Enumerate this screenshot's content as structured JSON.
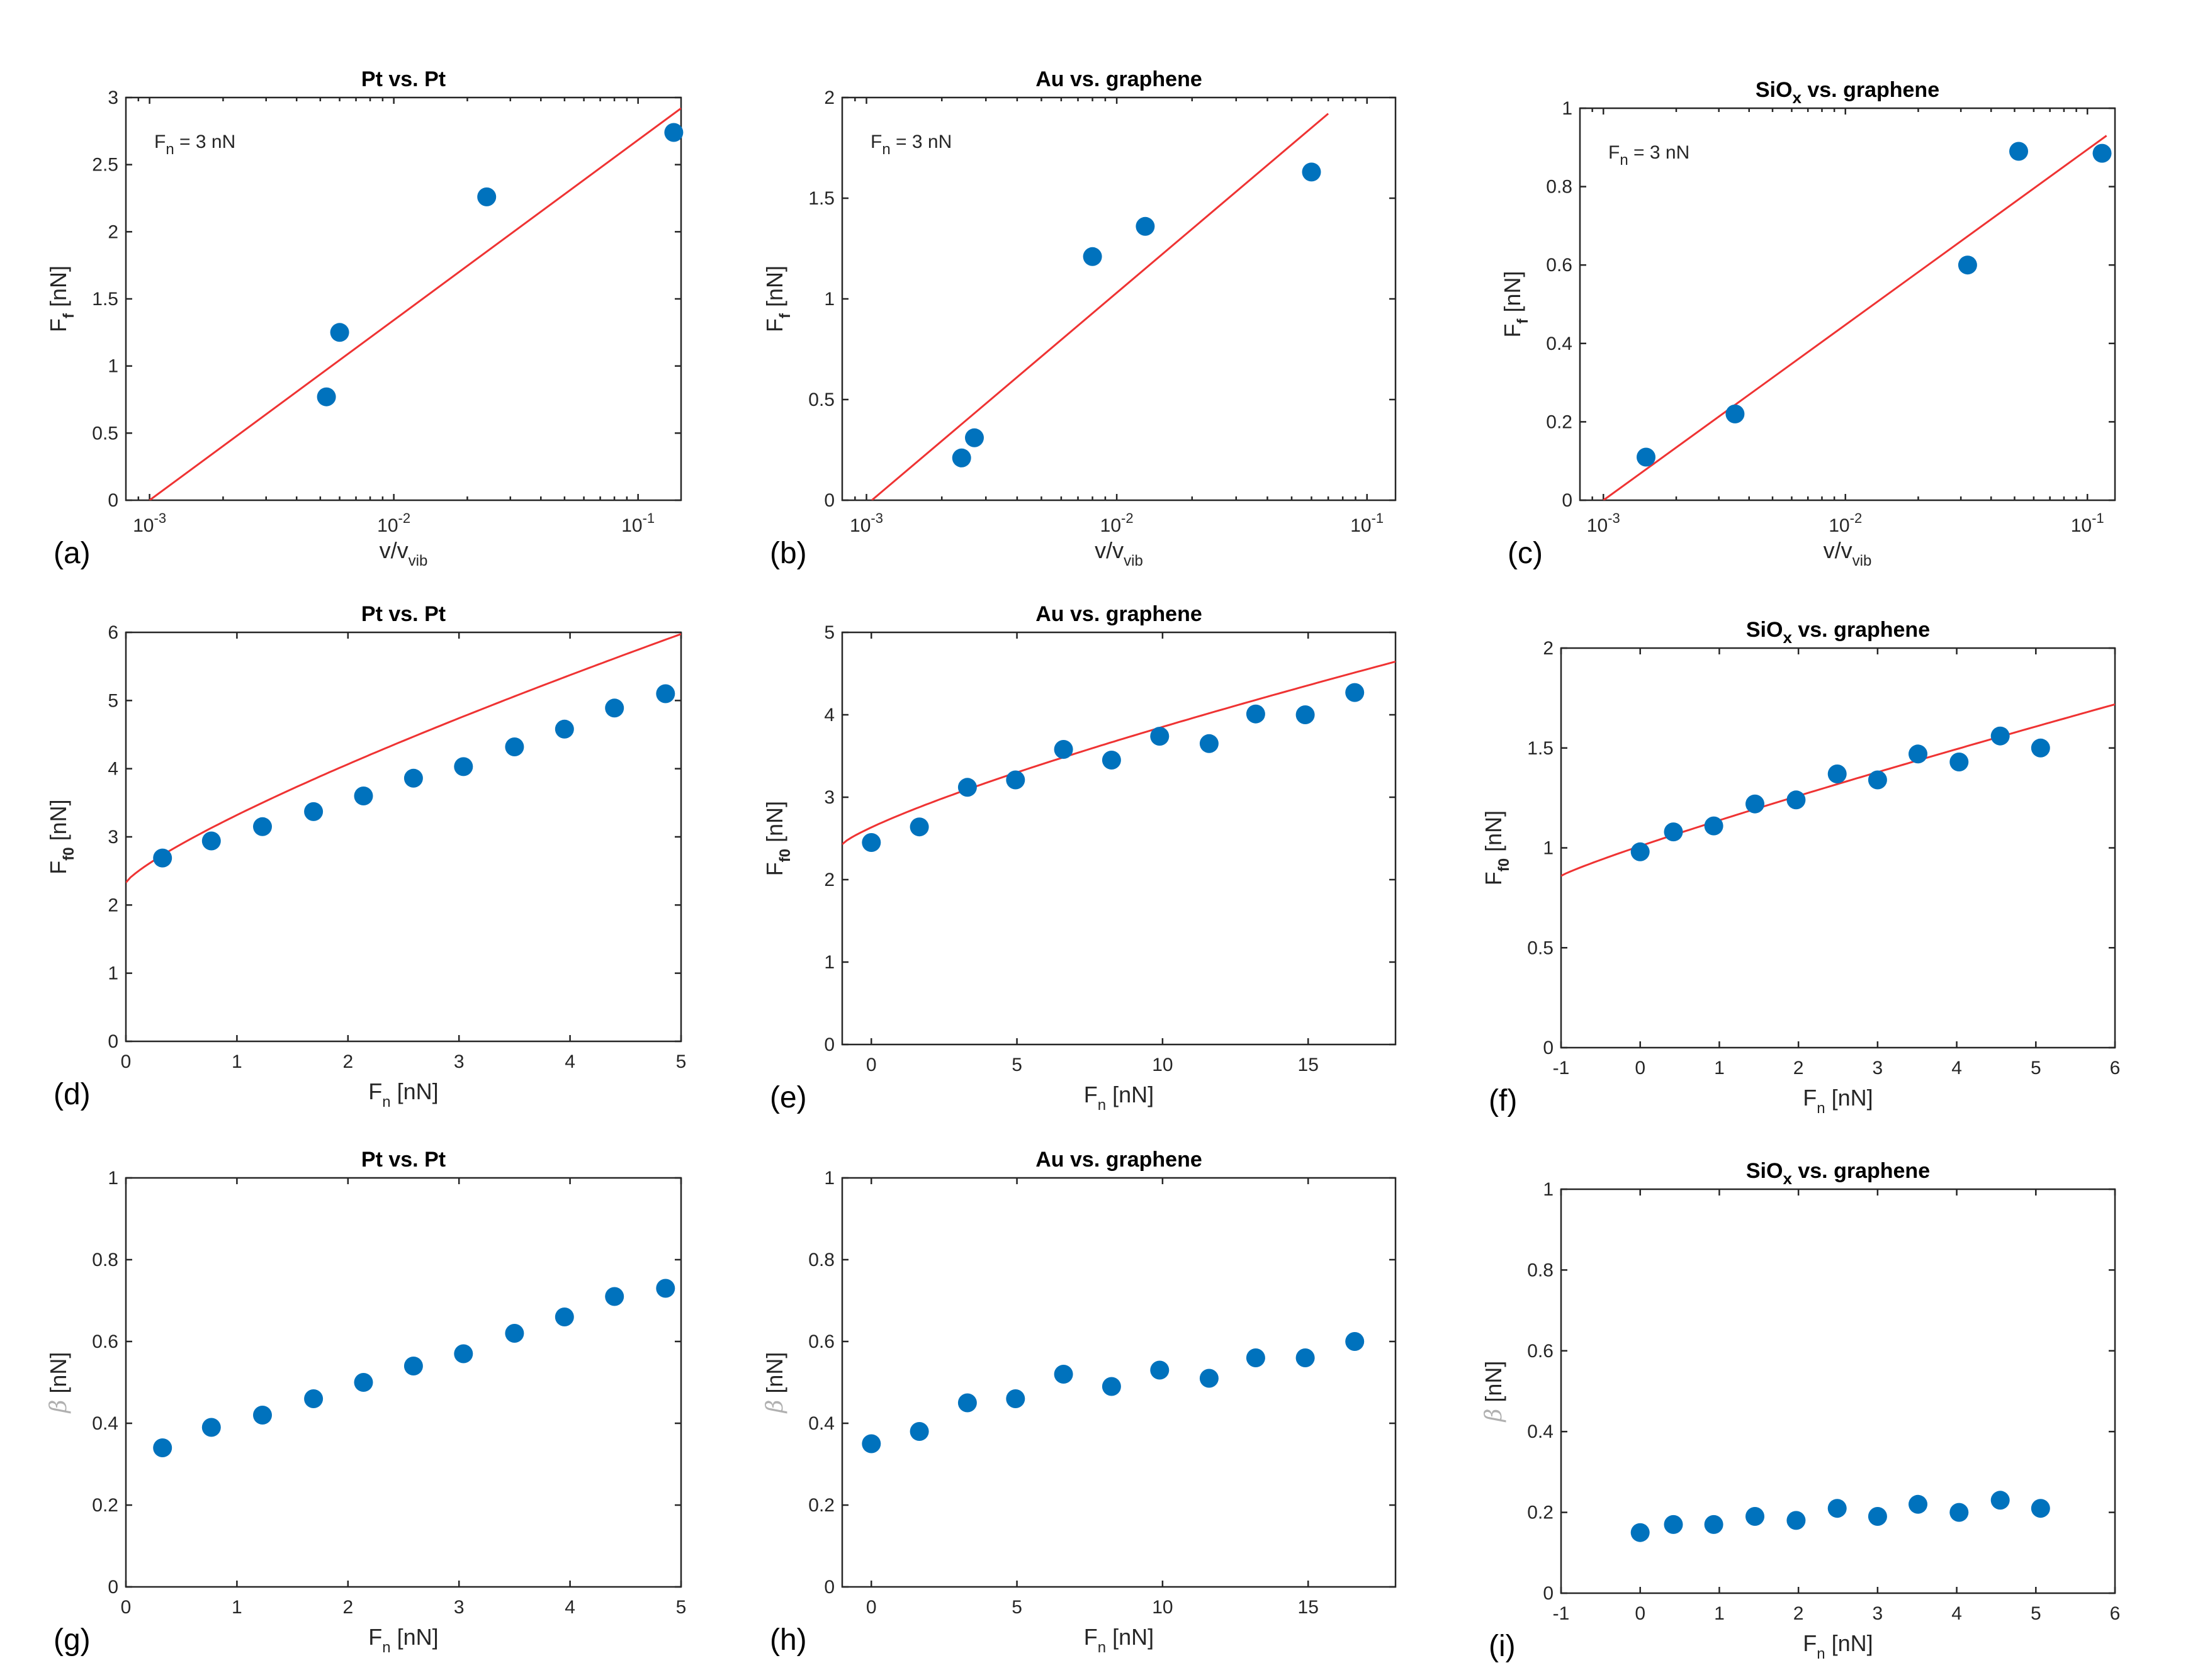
{
  "chart_data": [
    {
      "id": "a",
      "panel_label": "(a)",
      "type": "scatter",
      "title": {
        "main": "Pt vs. Pt",
        "sub": ""
      },
      "xlabel": {
        "main": "v/v",
        "sub": "vib"
      },
      "ylabel": {
        "main": "F",
        "sub": "f",
        "unit": " [nN]"
      },
      "xscale": "log",
      "xlim": [
        0.0008,
        0.15
      ],
      "ylim": [
        0,
        3
      ],
      "xticks": [
        0.001,
        0.01,
        0.1
      ],
      "xticklabels": [
        {
          "base": "10",
          "exp": "-3"
        },
        {
          "base": "10",
          "exp": "-2"
        },
        {
          "base": "10",
          "exp": "-1"
        }
      ],
      "yticks": [
        0,
        0.5,
        1,
        1.5,
        2,
        2.5,
        3
      ],
      "yticklabels": [
        "0",
        "0.5",
        "1",
        "1.5",
        "2",
        "2.5",
        "3"
      ],
      "annotation": {
        "main": "F",
        "sub": "n",
        "rest": " = 3 nN"
      },
      "points": [
        [
          0.0053,
          0.77
        ],
        [
          0.006,
          1.25
        ],
        [
          0.024,
          2.26
        ],
        [
          0.14,
          2.74
        ]
      ],
      "fit": {
        "kind": "loglin",
        "points": [
          [
            0.001,
            0.0
          ],
          [
            0.15,
            2.92
          ]
        ]
      }
    },
    {
      "id": "b",
      "panel_label": "(b)",
      "type": "scatter",
      "title": {
        "main": "Au vs. graphene",
        "sub": ""
      },
      "xlabel": {
        "main": "v/v",
        "sub": "vib"
      },
      "ylabel": {
        "main": "F",
        "sub": "f",
        "unit": " [nN]"
      },
      "xscale": "log",
      "xlim": [
        0.0008,
        0.13
      ],
      "ylim": [
        0,
        2
      ],
      "xticks": [
        0.001,
        0.01,
        0.1
      ],
      "xticklabels": [
        {
          "base": "10",
          "exp": "-3"
        },
        {
          "base": "10",
          "exp": "-2"
        },
        {
          "base": "10",
          "exp": "-1"
        }
      ],
      "yticks": [
        0,
        0.5,
        1,
        1.5,
        2
      ],
      "yticklabels": [
        "0",
        "0.5",
        "1",
        "1.5",
        "2"
      ],
      "annotation": {
        "main": "F",
        "sub": "n",
        "rest": " = 3 nN"
      },
      "points": [
        [
          0.0024,
          0.21
        ],
        [
          0.0027,
          0.31
        ],
        [
          0.008,
          1.21
        ],
        [
          0.013,
          1.36
        ],
        [
          0.06,
          1.63
        ]
      ],
      "fit": {
        "kind": "loglin",
        "points": [
          [
            0.00105,
            0.0
          ],
          [
            0.07,
            1.92
          ]
        ]
      }
    },
    {
      "id": "c",
      "panel_label": "(c)",
      "type": "scatter",
      "title": {
        "main": "SiO",
        "sub": "x",
        "rest": " vs. graphene"
      },
      "xlabel": {
        "main": "v/v",
        "sub": "vib"
      },
      "ylabel": {
        "main": "F",
        "sub": "f",
        "unit": " [nN]"
      },
      "xscale": "log",
      "xlim": [
        0.0008,
        0.13
      ],
      "ylim": [
        0,
        1
      ],
      "xticks": [
        0.001,
        0.01,
        0.1
      ],
      "xticklabels": [
        {
          "base": "10",
          "exp": "-3"
        },
        {
          "base": "10",
          "exp": "-2"
        },
        {
          "base": "10",
          "exp": "-1"
        }
      ],
      "yticks": [
        0,
        0.2,
        0.4,
        0.6,
        0.8,
        1
      ],
      "yticklabels": [
        "0",
        "0.2",
        "0.4",
        "0.6",
        "0.8",
        "1"
      ],
      "annotation": {
        "main": "F",
        "sub": "n",
        "rest": " = 3 nN"
      },
      "points": [
        [
          0.0015,
          0.11
        ],
        [
          0.0035,
          0.22
        ],
        [
          0.032,
          0.6
        ],
        [
          0.052,
          0.89
        ],
        [
          0.115,
          0.885
        ]
      ],
      "fit": {
        "kind": "loglin",
        "points": [
          [
            0.001,
            0.0
          ],
          [
            0.12,
            0.93
          ]
        ]
      }
    },
    {
      "id": "d",
      "panel_label": "(d)",
      "type": "scatter",
      "title": {
        "main": "Pt vs. Pt",
        "sub": ""
      },
      "xlabel": {
        "main": "F",
        "sub": "n",
        "rest": " [nN]"
      },
      "ylabel": {
        "main": "F",
        "sub": "f0",
        "unit": " [nN]"
      },
      "xscale": "linear",
      "xlim": [
        0,
        5
      ],
      "ylim": [
        0,
        6
      ],
      "xticks": [
        0,
        1,
        2,
        3,
        4,
        5
      ],
      "xticklabels": [
        "0",
        "1",
        "2",
        "3",
        "4",
        "5"
      ],
      "yticks": [
        0,
        1,
        2,
        3,
        4,
        5,
        6
      ],
      "yticklabels": [
        "0",
        "1",
        "2",
        "3",
        "4",
        "5",
        "6"
      ],
      "points": [
        [
          0.33,
          2.69
        ],
        [
          0.77,
          2.94
        ],
        [
          1.23,
          3.15
        ],
        [
          1.69,
          3.37
        ],
        [
          2.14,
          3.6
        ],
        [
          2.59,
          3.86
        ],
        [
          3.04,
          4.03
        ],
        [
          3.5,
          4.32
        ],
        [
          3.95,
          4.58
        ],
        [
          4.4,
          4.89
        ],
        [
          4.86,
          5.1
        ]
      ],
      "fit": {
        "kind": "power",
        "a": 2.33,
        "b": 0.99,
        "c": 0.81,
        "from": 0,
        "to": 5
      }
    },
    {
      "id": "e",
      "panel_label": "(e)",
      "type": "scatter",
      "title": {
        "main": "Au vs. graphene",
        "sub": ""
      },
      "xlabel": {
        "main": "F",
        "sub": "n",
        "rest": " [nN]"
      },
      "ylabel": {
        "main": "F",
        "sub": "f0",
        "unit": " [nN]"
      },
      "xscale": "linear",
      "xlim": [
        -1,
        18
      ],
      "ylim": [
        0,
        5
      ],
      "xticks": [
        0,
        5,
        10,
        15
      ],
      "xticklabels": [
        "0",
        "5",
        "10",
        "15"
      ],
      "yticks": [
        0,
        1,
        2,
        3,
        4,
        5
      ],
      "yticklabels": [
        "0",
        "1",
        "2",
        "3",
        "4",
        "5"
      ],
      "points": [
        [
          0,
          2.45
        ],
        [
          1.65,
          2.64
        ],
        [
          3.3,
          3.12
        ],
        [
          4.95,
          3.21
        ],
        [
          6.6,
          3.58
        ],
        [
          8.25,
          3.45
        ],
        [
          9.9,
          3.74
        ],
        [
          11.6,
          3.65
        ],
        [
          13.2,
          4.01
        ],
        [
          14.9,
          4.0
        ],
        [
          16.6,
          4.27
        ]
      ],
      "fit": {
        "kind": "power",
        "a": 2.43,
        "b": 0.204,
        "c": 0.81,
        "x0": -1,
        "from": -1,
        "to": 18
      }
    },
    {
      "id": "f",
      "panel_label": "(f)",
      "type": "scatter",
      "title": {
        "main": "SiO",
        "sub": "x",
        "rest": " vs. graphene"
      },
      "xlabel": {
        "main": "F",
        "sub": "n",
        "rest": " [nN]"
      },
      "ylabel": {
        "main": "F",
        "sub": "f0",
        "unit": " [nN]"
      },
      "xscale": "linear",
      "xlim": [
        -1,
        6
      ],
      "ylim": [
        0,
        2
      ],
      "xticks": [
        -1,
        0,
        1,
        2,
        3,
        4,
        5,
        6
      ],
      "xticklabels": [
        "-1",
        "0",
        "1",
        "2",
        "3",
        "4",
        "5",
        "6"
      ],
      "yticks": [
        0,
        0.5,
        1,
        1.5,
        2
      ],
      "yticklabels": [
        "0",
        "0.5",
        "1",
        "1.5",
        "2"
      ],
      "points": [
        [
          0,
          0.98
        ],
        [
          0.42,
          1.08
        ],
        [
          0.93,
          1.11
        ],
        [
          1.45,
          1.22
        ],
        [
          1.97,
          1.24
        ],
        [
          2.49,
          1.37
        ],
        [
          3.0,
          1.34
        ],
        [
          3.51,
          1.47
        ],
        [
          4.03,
          1.43
        ],
        [
          4.55,
          1.56
        ],
        [
          5.06,
          1.5
        ]
      ],
      "fit": {
        "kind": "power",
        "a": 0.86,
        "b": 0.149,
        "c": 0.9,
        "x0": -1,
        "from": -1,
        "to": 6
      }
    },
    {
      "id": "g",
      "panel_label": "(g)",
      "type": "scatter",
      "title": {
        "main": "Pt vs. Pt",
        "sub": ""
      },
      "xlabel": {
        "main": "F",
        "sub": "n",
        "rest": " [nN]"
      },
      "ylabel": {
        "main": "β",
        "sub": "",
        "unit": " [nN]"
      },
      "xscale": "linear",
      "xlim": [
        0,
        5
      ],
      "ylim": [
        0,
        1
      ],
      "xticks": [
        0,
        1,
        2,
        3,
        4,
        5
      ],
      "xticklabels": [
        "0",
        "1",
        "2",
        "3",
        "4",
        "5"
      ],
      "yticks": [
        0,
        0.2,
        0.4,
        0.6,
        0.8,
        1
      ],
      "yticklabels": [
        "0",
        "0.2",
        "0.4",
        "0.6",
        "0.8",
        "1"
      ],
      "points": [
        [
          0.33,
          0.34
        ],
        [
          0.77,
          0.39
        ],
        [
          1.23,
          0.42
        ],
        [
          1.69,
          0.46
        ],
        [
          2.14,
          0.5
        ],
        [
          2.59,
          0.54
        ],
        [
          3.04,
          0.57
        ],
        [
          3.5,
          0.62
        ],
        [
          3.95,
          0.66
        ],
        [
          4.4,
          0.71
        ],
        [
          4.86,
          0.73
        ]
      ]
    },
    {
      "id": "h",
      "panel_label": "(h)",
      "type": "scatter",
      "title": {
        "main": "Au vs. graphene",
        "sub": ""
      },
      "xlabel": {
        "main": "F",
        "sub": "n",
        "rest": " [nN]"
      },
      "ylabel": {
        "main": "β",
        "sub": "",
        "unit": " [nN]"
      },
      "xscale": "linear",
      "xlim": [
        -1,
        18
      ],
      "ylim": [
        0,
        1
      ],
      "xticks": [
        0,
        5,
        10,
        15
      ],
      "xticklabels": [
        "0",
        "5",
        "10",
        "15"
      ],
      "yticks": [
        0,
        0.2,
        0.4,
        0.6,
        0.8,
        1
      ],
      "yticklabels": [
        "0",
        "0.2",
        "0.4",
        "0.6",
        "0.8",
        "1"
      ],
      "points": [
        [
          0,
          0.35
        ],
        [
          1.65,
          0.38
        ],
        [
          3.3,
          0.45
        ],
        [
          4.95,
          0.46
        ],
        [
          6.6,
          0.52
        ],
        [
          8.25,
          0.49
        ],
        [
          9.9,
          0.53
        ],
        [
          11.6,
          0.51
        ],
        [
          13.2,
          0.56
        ],
        [
          14.9,
          0.56
        ],
        [
          16.6,
          0.6
        ]
      ]
    },
    {
      "id": "i",
      "panel_label": "(i)",
      "type": "scatter",
      "title": {
        "main": "SiO",
        "sub": "x",
        "rest": " vs. graphene"
      },
      "xlabel": {
        "main": "F",
        "sub": "n",
        "rest": " [nN]"
      },
      "ylabel": {
        "main": "β",
        "sub": "",
        "unit": " [nN]"
      },
      "xscale": "linear",
      "xlim": [
        -1,
        6
      ],
      "ylim": [
        0,
        1
      ],
      "xticks": [
        -1,
        0,
        1,
        2,
        3,
        4,
        5,
        6
      ],
      "xticklabels": [
        "-1",
        "0",
        "1",
        "2",
        "3",
        "4",
        "5",
        "6"
      ],
      "yticks": [
        0,
        0.2,
        0.4,
        0.6,
        0.8,
        1
      ],
      "yticklabels": [
        "0",
        "0.2",
        "0.4",
        "0.6",
        "0.8",
        "1"
      ],
      "points": [
        [
          0,
          0.15
        ],
        [
          0.42,
          0.17
        ],
        [
          0.93,
          0.17
        ],
        [
          1.45,
          0.19
        ],
        [
          1.97,
          0.18
        ],
        [
          2.49,
          0.21
        ],
        [
          3.0,
          0.19
        ],
        [
          3.51,
          0.22
        ],
        [
          4.03,
          0.2
        ],
        [
          4.55,
          0.23
        ],
        [
          5.06,
          0.21
        ]
      ]
    }
  ],
  "colors": {
    "points": "#0072bd",
    "fit": "#ef3333",
    "axes": "#262626"
  }
}
